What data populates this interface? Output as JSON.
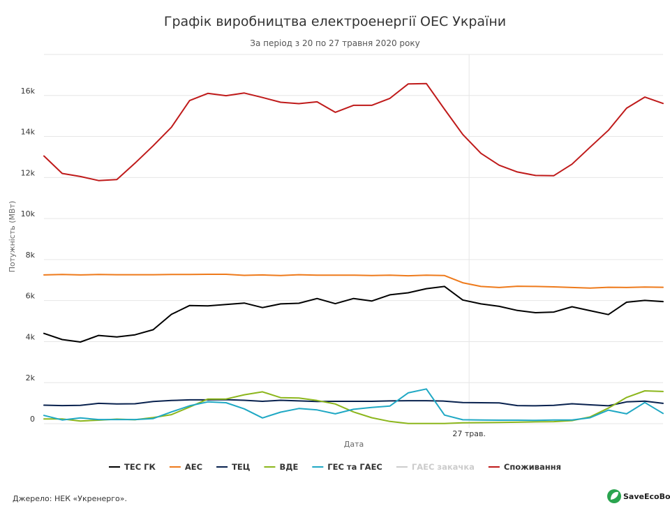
{
  "chart_data": {
    "type": "line",
    "title": "Графік виробництва електроенергії ОЕС України",
    "subtitle": "За період з 20 по 27 травня 2020 року",
    "xlabel": "Дата",
    "ylabel": "Потужність (МВт)",
    "ylim": [
      0,
      18000
    ],
    "yticks": [
      0,
      2000,
      4000,
      6000,
      8000,
      10000,
      12000,
      14000,
      16000
    ],
    "ytick_labels": [
      "0",
      "2k",
      "4k",
      "6k",
      "8k",
      "10k",
      "12k",
      "14k",
      "16k"
    ],
    "x_labeled_tick": {
      "index": 24,
      "label": "27 трав."
    },
    "x_count": 36,
    "grid": true,
    "legend_position": "bottom-center",
    "series": [
      {
        "name": "ТЕС ГК",
        "color": "#000000",
        "visible": true,
        "values": [
          4400,
          4100,
          3980,
          4300,
          4230,
          4330,
          4580,
          5330,
          5760,
          5740,
          5810,
          5880,
          5660,
          5840,
          5870,
          6100,
          5850,
          6100,
          5980,
          6280,
          6380,
          6580,
          6690,
          6030,
          5840,
          5720,
          5520,
          5410,
          5440,
          5700,
          5510,
          5320,
          5920,
          6010,
          5950
        ]
      },
      {
        "name": "АЕС",
        "color": "#ee7a1b",
        "visible": true,
        "values": [
          7250,
          7270,
          7250,
          7270,
          7260,
          7260,
          7260,
          7270,
          7270,
          7280,
          7280,
          7230,
          7250,
          7220,
          7260,
          7240,
          7240,
          7240,
          7220,
          7240,
          7210,
          7240,
          7220,
          6870,
          6690,
          6640,
          6700,
          6690,
          6670,
          6640,
          6610,
          6650,
          6640,
          6660,
          6650
        ]
      },
      {
        "name": "ТЕЦ",
        "color": "#08214e",
        "visible": true,
        "values": [
          900,
          880,
          890,
          990,
          960,
          970,
          1080,
          1130,
          1160,
          1160,
          1170,
          1140,
          1090,
          1140,
          1110,
          1080,
          1090,
          1090,
          1090,
          1110,
          1120,
          1120,
          1100,
          1030,
          1020,
          1010,
          880,
          870,
          890,
          970,
          920,
          870,
          1060,
          1100,
          990
        ]
      },
      {
        "name": "ВДЕ",
        "color": "#8cb61c",
        "visible": true,
        "values": [
          230,
          230,
          130,
          170,
          220,
          190,
          300,
          440,
          810,
          1200,
          1200,
          1410,
          1550,
          1270,
          1250,
          1130,
          960,
          570,
          290,
          110,
          10,
          10,
          10,
          40,
          50,
          60,
          70,
          90,
          100,
          150,
          330,
          760,
          1280,
          1600,
          1570
        ]
      },
      {
        "name": "ГЕС та ГАЕС",
        "color": "#1fa8c4",
        "visible": true,
        "values": [
          400,
          180,
          280,
          200,
          200,
          200,
          250,
          570,
          870,
          1060,
          1020,
          720,
          280,
          560,
          740,
          670,
          480,
          700,
          790,
          860,
          1500,
          1690,
          420,
          190,
          180,
          170,
          170,
          160,
          180,
          180,
          290,
          660,
          480,
          1030,
          500
        ]
      },
      {
        "name": "ГАЕС закачка",
        "color": "#cccccc",
        "visible": false,
        "values": []
      },
      {
        "name": "Споживання",
        "color": "#bf1a1a",
        "visible": true,
        "values": [
          13050,
          12200,
          12050,
          11850,
          11900,
          12700,
          13550,
          14450,
          15750,
          16100,
          15990,
          16120,
          15900,
          15670,
          15600,
          15690,
          15180,
          15520,
          15520,
          15860,
          16560,
          16580,
          15330,
          14100,
          13180,
          12600,
          12270,
          12100,
          12090,
          12650,
          13480,
          14300,
          15380,
          15920,
          15610
        ]
      }
    ]
  },
  "source_text": "Джерело: НЕК «Укренерго».",
  "logo_text": "SaveEcoBot"
}
